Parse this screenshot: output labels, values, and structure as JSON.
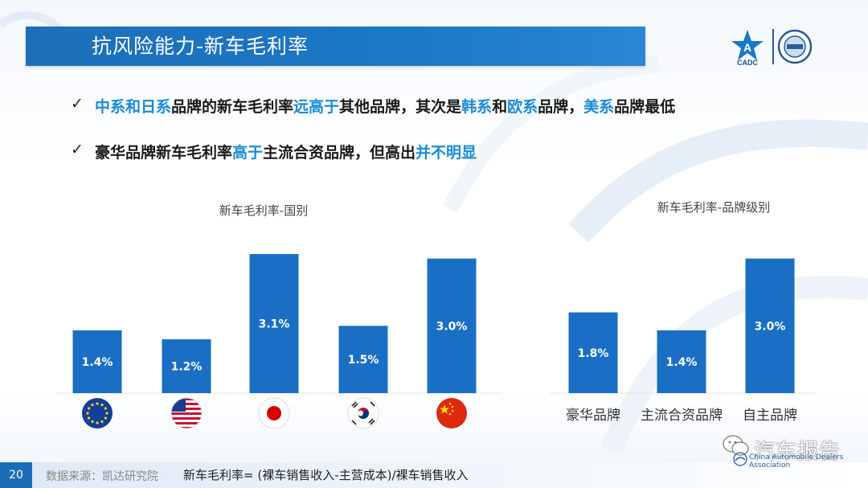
{
  "page": {
    "title": "抗风险能力-新车毛利率",
    "page_number": "20",
    "source": "数据来源：凯达研究院",
    "formula": "新车毛利率= (裸车销售收入-主营成本)/裸车销售收入",
    "watermark": "汽车报告",
    "logo_text": "CADC",
    "association_text": "China Automobile Dealers Association"
  },
  "bullets": [
    {
      "check": "✓",
      "segments": [
        {
          "text": "中系和日系",
          "highlight": true
        },
        {
          "text": "品牌的新车毛利率",
          "highlight": false
        },
        {
          "text": "远高于",
          "highlight": true
        },
        {
          "text": "其他品牌，其次是",
          "highlight": false
        },
        {
          "text": "韩系",
          "highlight": true
        },
        {
          "text": "和",
          "highlight": false
        },
        {
          "text": "欧系",
          "highlight": true
        },
        {
          "text": "品牌，",
          "highlight": false
        },
        {
          "text": "美系",
          "highlight": true
        },
        {
          "text": "品牌最低",
          "highlight": false
        }
      ]
    },
    {
      "check": "✓",
      "segments": [
        {
          "text": "豪华品牌新车毛利率",
          "highlight": false
        },
        {
          "text": "高于",
          "highlight": true
        },
        {
          "text": "主流合资品牌，但高出",
          "highlight": false
        },
        {
          "text": "并不明显",
          "highlight": true
        }
      ]
    }
  ],
  "colors": {
    "bar": "#1a6fc4",
    "highlight": "#1a8bd6",
    "title_bar": "#1b78c8"
  },
  "chart_data": [
    {
      "type": "bar",
      "title": "新车毛利率-国别",
      "categories": [
        "EU flag",
        "US flag",
        "Japan flag",
        "Korea flag",
        "China flag"
      ],
      "category_icons": [
        "eu-flag-icon",
        "us-flag-icon",
        "japan-flag-icon",
        "korea-flag-icon",
        "china-flag-icon"
      ],
      "values": [
        1.4,
        1.2,
        3.1,
        1.5,
        3.0
      ],
      "value_labels": [
        "1.4%",
        "1.2%",
        "3.1%",
        "1.5%",
        "3.0%"
      ],
      "unit": "%",
      "ylim": [
        0,
        3.1
      ],
      "grid": false
    },
    {
      "type": "bar",
      "title": "新车毛利率-品牌级别",
      "categories": [
        "豪华品牌",
        "主流合资品牌",
        "自主品牌"
      ],
      "values": [
        1.8,
        1.4,
        3.0
      ],
      "value_labels": [
        "1.8%",
        "1.4%",
        "3.0%"
      ],
      "unit": "%",
      "ylim": [
        0,
        3.1
      ],
      "grid": false
    }
  ]
}
